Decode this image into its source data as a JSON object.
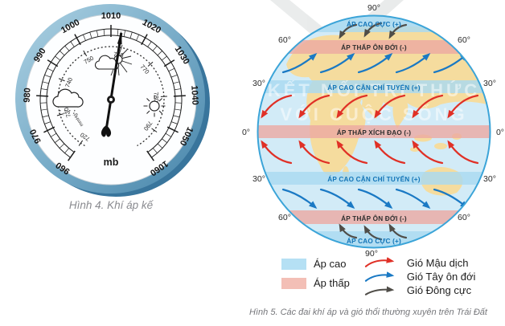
{
  "figure4": {
    "caption": "Hình 4. Khí áp kế",
    "unit": "mb",
    "inner_unit": "mmHg",
    "outer_scale": {
      "min": 960,
      "max": 1060,
      "step": 10,
      "labels": [
        "960",
        "970",
        "980",
        "990",
        "1000",
        "1010",
        "1020",
        "1030",
        "1040",
        "1050",
        "1060"
      ]
    },
    "inner_scale": {
      "min": 720,
      "max": 790,
      "step": 10,
      "labels": [
        "720",
        "730",
        "740",
        "750",
        "760",
        "770",
        "780",
        "790"
      ]
    },
    "needle_value_mb": 1013,
    "icons": [
      "sun-behind-cloud",
      "rain-cloud",
      "sun"
    ]
  },
  "figure5": {
    "caption": "Hình 5. Các đai khí áp và gió thổi thường xuyên trên Trái Đất",
    "pole_labels": {
      "top": "90°",
      "bottom": "90°"
    },
    "latitudes": [
      "60°",
      "30°",
      "0°",
      "30°",
      "60°"
    ],
    "belts": [
      {
        "label": "ÁP CAO CỰC (+)",
        "type": "high"
      },
      {
        "label": "ÁP THẤP ÔN ĐỚI (-)",
        "type": "low"
      },
      {
        "label": "ÁP CAO CẬN CHÍ TUYẾN (+)",
        "type": "high"
      },
      {
        "label": "ÁP THẤP XÍCH ĐẠO (-)",
        "type": "low"
      },
      {
        "label": "ÁP CAO CẬN CHÍ TUYẾN (+)",
        "type": "high"
      },
      {
        "label": "ÁP THẤP ÔN ĐỚI (-)",
        "type": "low"
      },
      {
        "label": "ÁP CAO CỰC (+)",
        "type": "high"
      }
    ],
    "legend": {
      "pressure": [
        {
          "label": "Áp cao",
          "color": "#b5e0f4"
        },
        {
          "label": "Áp thấp",
          "color": "#f3bfb6"
        }
      ],
      "winds": [
        {
          "label": "Gió Mậu dịch",
          "color": "#e03026"
        },
        {
          "label": "Gió Tây ôn đới",
          "color": "#1a79c4"
        },
        {
          "label": "Gió Đông cực",
          "color": "#4f4d48"
        }
      ]
    },
    "colors": {
      "high_band": "#a9d9f0",
      "low_band": "#eca9a1",
      "ocean": "#d2ebf7",
      "land": "#f5dc9e",
      "outline": "#3ba4d8"
    }
  },
  "watermark": {
    "line1": "KẾT NỐI TRI THỨC",
    "line2": "VỚI CUỘC SỐNG"
  }
}
